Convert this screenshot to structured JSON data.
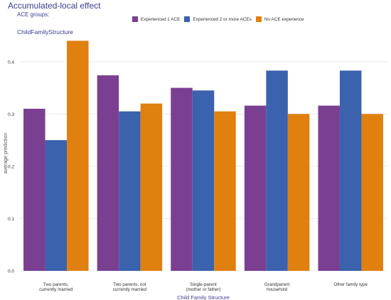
{
  "title": "Accumulated-local effect",
  "legend_title": "ACE groups:",
  "facet_label": "ChildFamilyStructure",
  "chart_data": {
    "type": "bar",
    "title": "Accumulated-local effect",
    "xlabel": "Child Family Structure",
    "ylabel": "average prediction",
    "ylim": [
      0,
      0.45
    ],
    "yticks": [
      "0.0",
      "0.1",
      "0.2",
      "0.3",
      "0.4"
    ],
    "categories": [
      [
        "Two parents,",
        "currently married"
      ],
      [
        "Two parents, not",
        "currently married"
      ],
      [
        "Single-parent",
        "(mother or father)"
      ],
      [
        "Grandparent",
        "household"
      ],
      [
        "Other family type"
      ]
    ],
    "series": [
      {
        "name": "Experienced 1 ACE",
        "color": "#7b3f92",
        "values": [
          0.31,
          0.374,
          0.35,
          0.316,
          0.316
        ]
      },
      {
        "name": "Experienced 2 or more ACEs",
        "color": "#3a62ad",
        "values": [
          0.25,
          0.305,
          0.345,
          0.383,
          0.383
        ]
      },
      {
        "name": "No ACE experience",
        "color": "#e0800f",
        "values": [
          0.44,
          0.32,
          0.305,
          0.3,
          0.3
        ]
      }
    ],
    "grid": true,
    "legend_position": "top"
  }
}
